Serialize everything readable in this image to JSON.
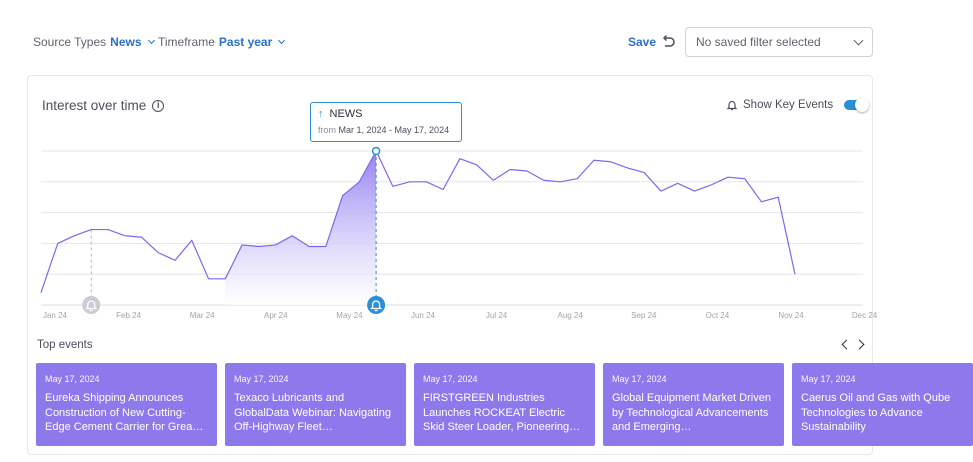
{
  "filters": {
    "source_label": "Source Types",
    "source_value": "News",
    "timeframe_label": "Timeframe",
    "timeframe_value": "Past year"
  },
  "toolbar": {
    "save_label": "Save",
    "saved_filter_placeholder": "No saved filter selected"
  },
  "panel": {
    "title": "Interest over time",
    "key_events_label": "Show Key Events",
    "key_events_enabled": true
  },
  "tooltip": {
    "title": "NEWS",
    "from_label": "from",
    "range": "Mar 1, 2024 - May 17, 2024"
  },
  "chart_data": {
    "type": "line",
    "x_ticks": [
      "Jan 24",
      "Feb 24",
      "Mar 24",
      "Apr 24",
      "May 24",
      "Jun 24",
      "Jul 24",
      "Aug 24",
      "Sep 24",
      "Oct 24",
      "Nov 24",
      "Dec 24"
    ],
    "ylim": [
      0,
      100
    ],
    "grid": true,
    "highlight_range": [
      "Mar 1, 2024",
      "May 17, 2024"
    ],
    "key_event_dates": [
      "Jan 24",
      "May 17, 2024"
    ],
    "series": [
      {
        "values": [
          8,
          40,
          45,
          49,
          49,
          45,
          44,
          34,
          29,
          42,
          17,
          17,
          39,
          38,
          39,
          45,
          38,
          38,
          71,
          80,
          100,
          77,
          80,
          80,
          75,
          95,
          91,
          81,
          88,
          87,
          81,
          80,
          82,
          94,
          93,
          89,
          86,
          74,
          79,
          74,
          78,
          83,
          82,
          67,
          70,
          20
        ]
      }
    ]
  },
  "top_events": {
    "title": "Top events",
    "items": [
      {
        "date": "May 17, 2024",
        "headline": "Eureka Shipping Announces Construction of New Cutting-Edge Cement Carrier for Grea…"
      },
      {
        "date": "May 17, 2024",
        "headline": "Texaco Lubricants and GlobalData Webinar: Navigating Off-Highway Fleet…"
      },
      {
        "date": "May 17, 2024",
        "headline": "FIRSTGREEN Industries Launches ROCKEAT Electric Skid Steer Loader, Pioneering…"
      },
      {
        "date": "May 17, 2024",
        "headline": "Global Equipment Market Driven by Technological Advancements and Emerging…"
      },
      {
        "date": "May 17, 2024",
        "headline": "Caerus Oil and Gas with Qube Technologies to Advance Sustainability"
      }
    ]
  },
  "colors": {
    "accent_blue": "#2a71c9",
    "line_purple": "#7b68ee",
    "card_purple": "#8e79ec",
    "key_event_blue": "#2a8fd6"
  }
}
